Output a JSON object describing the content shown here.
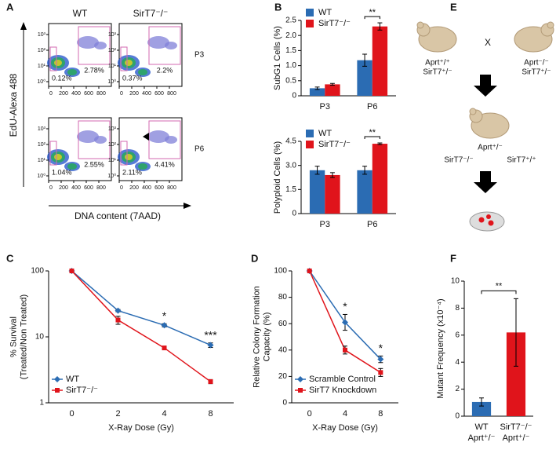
{
  "panel_labels": [
    "A",
    "B",
    "C",
    "D",
    "E",
    "F"
  ],
  "flow": {
    "x_label": "DNA content (7AAD)",
    "y_label": "EdU-Alexa 488",
    "columns": [
      "WT",
      "SirT7⁻/⁻"
    ],
    "rows": [
      "P3",
      "P6"
    ],
    "xlim": [
      0,
      1000
    ],
    "xticks": [
      0,
      200,
      400,
      600,
      800
    ],
    "log_y": true,
    "ylim": [
      0.5,
      5000
    ],
    "yticks": [
      {
        "value": 1,
        "label": "10⁰"
      },
      {
        "value": 10,
        "label": "10¹"
      },
      {
        "value": 100,
        "label": "10²"
      },
      {
        "value": 1000,
        "label": "10³"
      }
    ],
    "gate_labels": [
      [
        "0.12%",
        "2.78%"
      ],
      [
        "0.37%",
        "2.2%"
      ],
      [
        "1.04%",
        "2.55%"
      ],
      [
        "2.11%",
        "4.41%"
      ]
    ]
  },
  "diagram": {
    "cross": "X",
    "parent1": [
      "Aprt⁺/⁺",
      "SirT7⁺/⁻"
    ],
    "parent2": [
      "Aprt⁻/⁻",
      "SirT7⁺/⁻"
    ],
    "offspring": [
      "Aprt⁺/⁻",
      "SirT7⁻/⁻",
      "SirT7⁺/⁺"
    ]
  },
  "chart_data": [
    {
      "type": "bar",
      "y_label": [
        "SubG1 Cells (%)"
      ],
      "categories": [
        "P3",
        "P6"
      ],
      "series": [
        {
          "name": "WT",
          "color": "#2b6cb3",
          "values": [
            0.25,
            1.18
          ],
          "errors": [
            0.04,
            0.2
          ]
        },
        {
          "name": "SirT7⁻/⁻",
          "color": "#e0141b",
          "values": [
            0.38,
            2.3
          ],
          "errors": [
            0.03,
            0.12
          ]
        }
      ],
      "ylim": [
        0,
        2.5
      ],
      "yticks": [
        0,
        0.5,
        {
          "value": 1,
          "label": "1.0"
        },
        1.5,
        {
          "value": 2,
          "label": "2.0"
        },
        2.5
      ],
      "legend": "upper left",
      "annotations": [
        "**"
      ]
    },
    {
      "type": "bar",
      "y_label": [
        "Polyploid Cells (%)"
      ],
      "categories": [
        "P3",
        "P6"
      ],
      "series": [
        {
          "name": "WT",
          "color": "#2b6cb3",
          "values": [
            2.7,
            2.7
          ],
          "errors": [
            0.25,
            0.25
          ]
        },
        {
          "name": "SirT7⁻/⁻",
          "color": "#e0141b",
          "values": [
            2.4,
            4.35
          ],
          "errors": [
            0.15,
            0.05
          ]
        }
      ],
      "ylim": [
        0,
        4.5
      ],
      "yticks": [
        0,
        1.5,
        {
          "value": 3,
          "label": "3.0"
        },
        4.5
      ],
      "legend": "upper left",
      "annotations": [
        "**"
      ]
    },
    {
      "type": "line",
      "x_label": "X-Ray Dose (Gy)",
      "y_label": [
        "% Survival",
        "(Treated/Non Treated)"
      ],
      "categories": [
        "0",
        "2",
        "4",
        "8"
      ],
      "series": [
        {
          "name": "WT",
          "color": "#2b6cb3",
          "marker": "diamond",
          "values": [
            100,
            25,
            15,
            7.5
          ],
          "errors": [
            0,
            1,
            0.8,
            0.6
          ]
        },
        {
          "name": "SirT7⁻/⁻",
          "color": "#e0141b",
          "marker": "square",
          "values": [
            100,
            18,
            6.8,
            2.1
          ],
          "errors": [
            0,
            2.5,
            0.3,
            0.15
          ]
        }
      ],
      "log_y": true,
      "ylim": [
        1,
        100
      ],
      "yticks": [
        1,
        10,
        100
      ],
      "legend": "lower left",
      "annotations": [
        "*",
        "***"
      ]
    },
    {
      "type": "line",
      "x_label": "X-Ray Dose (Gy)",
      "y_label": [
        "Relative Colony Formation",
        "Capacity (%)"
      ],
      "categories": [
        "0",
        "4",
        "8"
      ],
      "series": [
        {
          "name": "Scramble Control",
          "color": "#2b6cb3",
          "marker": "diamond",
          "values": [
            100,
            61,
            33
          ],
          "errors": [
            0,
            6,
            2.5
          ]
        },
        {
          "name": "SirT7 Knockdown",
          "color": "#e0141b",
          "marker": "square",
          "values": [
            100,
            40,
            23
          ],
          "errors": [
            0,
            3,
            3
          ]
        }
      ],
      "ylim": [
        0,
        100
      ],
      "yticks": [
        0,
        20,
        40,
        60,
        80,
        100
      ],
      "legend": "lower left",
      "annotations": [
        "*",
        "*"
      ]
    },
    {
      "type": "bar",
      "y_label": [
        "Mutant Frequency (x10⁻⁴)"
      ],
      "categories": [
        "WT",
        "SirT7⁻/⁻"
      ],
      "category_sublabels": [
        "Aprt⁺/⁻",
        "Aprt⁺/⁻"
      ],
      "values": [
        1.05,
        6.2
      ],
      "errors": [
        0.3,
        2.5
      ],
      "colors": [
        "#2b6cb3",
        "#e0141b"
      ],
      "ylim": [
        0,
        10
      ],
      "yticks": [
        0,
        2,
        4,
        6,
        8,
        10
      ],
      "annotations": [
        "**"
      ]
    }
  ]
}
